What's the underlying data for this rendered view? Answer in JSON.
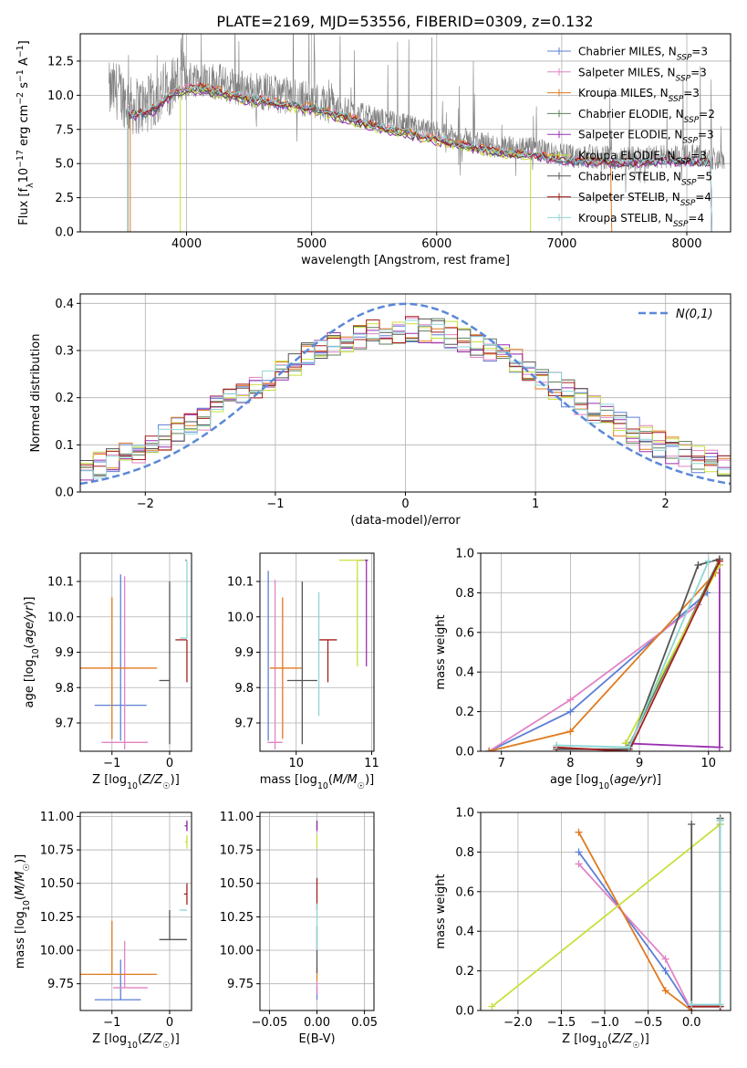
{
  "title": "PLATE=2169, MJD=53556, FIBERID=0309, z=0.132",
  "colors": {
    "Chabrier MILES": "#5b7fd6",
    "Salpeter MILES": "#e283c4",
    "Kroupa MILES": "#e07a1f",
    "Chabrier ELODIE": "#5e7f5a",
    "Salpeter ELODIE": "#9a2fb0",
    "Kroupa ELODIE": "#c8e03a",
    "Chabrier STELIB": "#555555",
    "Salpeter STELIB": "#a51e1e",
    "Kroupa STELIB": "#8fd6d6",
    "gauss": "#5b88d8",
    "data": "#808080"
  },
  "chart_data": [
    {
      "type": "line",
      "xlabel": "wavelength [Angstrom, rest frame]",
      "ylabel": "Flux [f_λ 10^-17 erg cm^-2 s^-1 A^-1]",
      "xlim": [
        3150,
        8350
      ],
      "ylim": [
        0,
        14.5
      ],
      "xticks": [
        4000,
        5000,
        6000,
        7000,
        8000
      ],
      "yticks": [
        0.0,
        2.5,
        5.0,
        7.5,
        10.0,
        12.5
      ],
      "legend_position": "upper right",
      "legend": [
        {
          "label": "Chabrier MILES",
          "nssp": "3"
        },
        {
          "label": "Salpeter MILES",
          "nssp": "3"
        },
        {
          "label": "Kroupa MILES",
          "nssp": "3"
        },
        {
          "label": "Chabrier ELODIE",
          "nssp": "2"
        },
        {
          "label": "Salpeter ELODIE",
          "nssp": "3"
        },
        {
          "label": "Kroupa ELODIE",
          "nssp": "3"
        },
        {
          "label": "Chabrier STELIB",
          "nssp": "5"
        },
        {
          "label": "Salpeter STELIB",
          "nssp": "4"
        },
        {
          "label": "Kroupa STELIB",
          "nssp": "4"
        }
      ],
      "data_trend": {
        "x": [
          3380,
          3450,
          3550,
          3700,
          3900,
          4100,
          4500,
          5000,
          5500,
          6000,
          6500,
          6800,
          7000,
          7500,
          8000,
          8300
        ],
        "y": [
          10.2,
          10.4,
          9.2,
          9.3,
          11.0,
          11.3,
          10.4,
          9.7,
          8.3,
          7.2,
          6.2,
          6.0,
          5.6,
          5.4,
          5.6,
          5.3
        ]
      },
      "model_cutoffs": [
        {
          "name": "Kroupa MILES",
          "from": 3550,
          "to": 7400
        },
        {
          "name": "Kroupa ELODIE",
          "from": 3950,
          "to": 6750
        }
      ]
    },
    {
      "type": "step",
      "xlabel": "(data-model)/error",
      "ylabel": "Normed distribution",
      "xlim": [
        -2.5,
        2.5
      ],
      "ylim": [
        0,
        0.42
      ],
      "xticks": [
        -2,
        -1,
        0,
        1,
        2
      ],
      "yticks": [
        0.0,
        0.1,
        0.2,
        0.3,
        0.4
      ],
      "legend_label": "N(0,1)",
      "bin_width": 0.1
    },
    {
      "type": "scatter",
      "xlabel": "Z [log10(Z/Z☉)]",
      "ylabel": "age  [log10(age/yr)]",
      "xlim": [
        -1.55,
        0.38
      ],
      "ylim": [
        9.62,
        10.18
      ],
      "xticks": [
        -1,
        0
      ],
      "yticks": [
        9.7,
        9.8,
        9.9,
        10.0,
        10.1
      ],
      "points": [
        {
          "name": "Chabrier MILES",
          "x": -0.85,
          "y": 9.75,
          "xerr": [
            0.45,
            0.45
          ],
          "yerr": [
            0.1,
            0.37
          ]
        },
        {
          "name": "Salpeter MILES",
          "x": -0.78,
          "y": 9.645,
          "xerr": [
            0.4,
            0.4
          ],
          "yerr": [
            0.02,
            0.47
          ]
        },
        {
          "name": "Kroupa MILES",
          "x": -1.0,
          "y": 9.855,
          "xerr": [
            0.55,
            0.78
          ],
          "yerr": [
            0.2,
            0.2
          ]
        },
        {
          "name": "Chabrier ELODIE",
          "x": 0.3,
          "y": 10.16,
          "xerr": [
            0.02,
            0.0
          ],
          "yerr": [
            0.0,
            0.0
          ]
        },
        {
          "name": "Salpeter ELODIE",
          "x": 0.3,
          "y": 10.16,
          "xerr": [
            0.03,
            0.0
          ],
          "yerr": [
            0.0,
            0.0
          ]
        },
        {
          "name": "Kroupa ELODIE",
          "x": 0.3,
          "y": 10.16,
          "xerr": [
            0.02,
            0.0
          ],
          "yerr": [
            0.0,
            0.0
          ]
        },
        {
          "name": "Chabrier STELIB",
          "x": 0.0,
          "y": 9.82,
          "xerr": [
            0.18,
            0.0
          ],
          "yerr": [
            0.18,
            0.28
          ]
        },
        {
          "name": "Salpeter STELIB",
          "x": 0.3,
          "y": 9.935,
          "xerr": [
            0.2,
            0.0
          ],
          "yerr": [
            0.12,
            0.0
          ]
        },
        {
          "name": "Kroupa STELIB",
          "x": 0.3,
          "y": 9.94,
          "xerr": [
            0.12,
            0.0
          ],
          "yerr": [
            0.0,
            0.22
          ]
        }
      ]
    },
    {
      "type": "scatter",
      "xlabel": "mass [log10(M/M☉)]",
      "ylabel": "",
      "xlim": [
        9.52,
        11.03
      ],
      "ylim": [
        9.62,
        10.18
      ],
      "xticks": [
        10,
        11
      ],
      "yticks": [
        9.7,
        9.8,
        9.9,
        10.0,
        10.1
      ],
      "points": [
        {
          "name": "Chabrier MILES",
          "x": 9.63,
          "y": 9.75,
          "xerr": [
            0.0,
            0.0
          ],
          "yerr": [
            0.1,
            0.38
          ]
        },
        {
          "name": "Salpeter MILES",
          "x": 9.72,
          "y": 9.645,
          "xerr": [
            0.1,
            0.1
          ],
          "yerr": [
            0.02,
            0.46
          ]
        },
        {
          "name": "Kroupa MILES",
          "x": 9.82,
          "y": 9.855,
          "xerr": [
            0.17,
            0.25
          ],
          "yerr": [
            0.2,
            0.2
          ]
        },
        {
          "name": "Chabrier ELODIE",
          "x": 10.93,
          "y": 10.16,
          "xerr": [
            0.1,
            0.02
          ],
          "yerr": [
            0.0,
            0.0
          ]
        },
        {
          "name": "Salpeter ELODIE",
          "x": 10.93,
          "y": 10.16,
          "xerr": [
            0.02,
            0.02
          ],
          "yerr": [
            0.3,
            0.0
          ]
        },
        {
          "name": "Kroupa ELODIE",
          "x": 10.81,
          "y": 10.16,
          "xerr": [
            0.24,
            0.1
          ],
          "yerr": [
            0.3,
            0.0
          ]
        },
        {
          "name": "Chabrier STELIB",
          "x": 10.08,
          "y": 9.82,
          "xerr": [
            0.2,
            0.2
          ],
          "yerr": [
            0.18,
            0.28
          ]
        },
        {
          "name": "Salpeter STELIB",
          "x": 10.42,
          "y": 9.935,
          "xerr": [
            0.12,
            0.12
          ],
          "yerr": [
            0.12,
            0.0
          ]
        },
        {
          "name": "Kroupa STELIB",
          "x": 10.3,
          "y": 9.94,
          "xerr": [
            0.0,
            0.0
          ],
          "yerr": [
            0.22,
            0.13
          ]
        }
      ]
    },
    {
      "type": "line",
      "xlabel": "age  [log10(age/yr)]",
      "ylabel": "mass weight",
      "xlim": [
        6.7,
        10.32
      ],
      "ylim": [
        0,
        1.0
      ],
      "xticks": [
        7,
        8,
        9,
        10
      ],
      "yticks": [
        0.0,
        0.2,
        0.4,
        0.6,
        0.8,
        1.0
      ],
      "series": [
        {
          "name": "Chabrier MILES",
          "x": [
            6.82,
            8.0,
            9.98
          ],
          "y": [
            0.0,
            0.2,
            0.8
          ]
        },
        {
          "name": "Salpeter MILES",
          "x": [
            6.82,
            8.0,
            9.85
          ],
          "y": [
            0.0,
            0.26,
            0.74
          ]
        },
        {
          "name": "Kroupa MILES",
          "x": [
            6.82,
            8.0,
            10.1
          ],
          "y": [
            0.0,
            0.1,
            0.9
          ]
        },
        {
          "name": "Chabrier ELODIE",
          "x": [
            8.85,
            10.16
          ],
          "y": [
            0.03,
            0.97
          ]
        },
        {
          "name": "Salpeter ELODIE",
          "x": [
            8.8,
            10.16,
            10.16
          ],
          "y": [
            0.04,
            0.02,
            0.94
          ]
        },
        {
          "name": "Kroupa ELODIE",
          "x": [
            8.8,
            10.16
          ],
          "y": [
            0.04,
            0.94
          ]
        },
        {
          "name": "Chabrier STELIB",
          "x": [
            7.8,
            8.85,
            9.85,
            10.16
          ],
          "y": [
            0.01,
            0.01,
            0.94,
            0.97
          ]
        },
        {
          "name": "Salpeter STELIB",
          "x": [
            7.8,
            8.85,
            10.16
          ],
          "y": [
            0.02,
            0.0,
            0.96
          ]
        },
        {
          "name": "Kroupa STELIB",
          "x": [
            7.8,
            8.85,
            10.0
          ],
          "y": [
            0.03,
            0.02,
            0.96
          ]
        }
      ]
    },
    {
      "type": "scatter",
      "xlabel": "Z [log10(Z/Z☉)]",
      "ylabel": "mass [log10(M/M☉)]",
      "xlim": [
        -1.55,
        0.38
      ],
      "ylim": [
        9.55,
        11.03
      ],
      "xticks": [
        -1,
        0
      ],
      "yticks": [
        9.75,
        10.0,
        10.25,
        10.5,
        10.75,
        11.0
      ],
      "points": [
        {
          "name": "Chabrier MILES",
          "x": -0.85,
          "y": 9.63,
          "xerr": [
            0.45,
            0.35
          ],
          "yerr": [
            0.0,
            0.3
          ]
        },
        {
          "name": "Salpeter MILES",
          "x": -0.78,
          "y": 9.72,
          "xerr": [
            0.2,
            0.4
          ],
          "yerr": [
            0.0,
            0.35
          ]
        },
        {
          "name": "Kroupa MILES",
          "x": -1.0,
          "y": 9.82,
          "xerr": [
            0.55,
            0.78
          ],
          "yerr": [
            0.0,
            0.4
          ]
        },
        {
          "name": "Chabrier ELODIE",
          "x": 0.3,
          "y": 10.93,
          "xerr": [
            0.04,
            0.0
          ],
          "yerr": [
            0.03,
            0.03
          ]
        },
        {
          "name": "Salpeter ELODIE",
          "x": 0.3,
          "y": 10.93,
          "xerr": [
            0.03,
            0.0
          ],
          "yerr": [
            0.04,
            0.04
          ]
        },
        {
          "name": "Kroupa ELODIE",
          "x": 0.3,
          "y": 10.81,
          "xerr": [
            0.03,
            0.0
          ],
          "yerr": [
            0.05,
            0.05
          ]
        },
        {
          "name": "Chabrier STELIB",
          "x": 0.0,
          "y": 10.08,
          "xerr": [
            0.18,
            0.3
          ],
          "yerr": [
            0.0,
            0.22
          ]
        },
        {
          "name": "Salpeter STELIB",
          "x": 0.3,
          "y": 10.42,
          "xerr": [
            0.05,
            0.0
          ],
          "yerr": [
            0.08,
            0.08
          ]
        },
        {
          "name": "Kroupa STELIB",
          "x": 0.3,
          "y": 10.3,
          "xerr": [
            0.13,
            0.0
          ],
          "yerr": [
            0.0,
            0.0
          ]
        }
      ]
    },
    {
      "type": "scatter",
      "xlabel": "E(B-V)",
      "ylabel": "",
      "xlim": [
        -0.06,
        0.06
      ],
      "ylim": [
        9.55,
        11.03
      ],
      "xticks": [
        -0.05,
        0.0,
        0.05
      ],
      "yticks": [
        9.75,
        10.0,
        10.25,
        10.5,
        10.75,
        11.0
      ],
      "points": [
        {
          "name": "Chabrier MILES",
          "x": 0.0,
          "y": 9.63,
          "xerr": [
            0,
            0
          ],
          "yerr": [
            0.0,
            0.1
          ]
        },
        {
          "name": "Salpeter MILES",
          "x": 0.0,
          "y": 9.72,
          "xerr": [
            0,
            0
          ],
          "yerr": [
            0.05,
            0.05
          ]
        },
        {
          "name": "Kroupa MILES",
          "x": 0.0,
          "y": 9.82,
          "xerr": [
            0,
            0
          ],
          "yerr": [
            0.05,
            0.05
          ]
        },
        {
          "name": "Chabrier ELODIE",
          "x": 0.0,
          "y": 10.93,
          "xerr": [
            0,
            0
          ],
          "yerr": [
            0.03,
            0.03
          ]
        },
        {
          "name": "Salpeter ELODIE",
          "x": 0.0,
          "y": 10.93,
          "xerr": [
            0,
            0
          ],
          "yerr": [
            0.04,
            0.04
          ]
        },
        {
          "name": "Kroupa ELODIE",
          "x": 0.0,
          "y": 10.81,
          "xerr": [
            0,
            0
          ],
          "yerr": [
            0.05,
            0.05
          ]
        },
        {
          "name": "Chabrier STELIB",
          "x": 0.0,
          "y": 10.08,
          "xerr": [
            0,
            0
          ],
          "yerr": [
            0.25,
            0.1
          ]
        },
        {
          "name": "Salpeter STELIB",
          "x": 0.0,
          "y": 10.42,
          "xerr": [
            0,
            0
          ],
          "yerr": [
            0.12,
            0.12
          ]
        },
        {
          "name": "Kroupa STELIB",
          "x": 0.0,
          "y": 10.3,
          "xerr": [
            0,
            0
          ],
          "yerr": [
            0.3,
            0.05
          ]
        }
      ]
    },
    {
      "type": "line",
      "xlabel": "Z [log10(Z/Z☉)]",
      "ylabel": "mass weight",
      "xlim": [
        -2.43,
        0.45
      ],
      "ylim": [
        0,
        1.0
      ],
      "xticks": [
        -2.0,
        -1.5,
        -1.0,
        -0.5,
        0.0
      ],
      "yticks": [
        0.0,
        0.2,
        0.4,
        0.6,
        0.8,
        1.0
      ],
      "series": [
        {
          "name": "Chabrier MILES",
          "x": [
            -1.3,
            -0.3,
            0.0
          ],
          "y": [
            0.8,
            0.2,
            0.0
          ]
        },
        {
          "name": "Salpeter MILES",
          "x": [
            -1.3,
            -0.3,
            0.0
          ],
          "y": [
            0.74,
            0.26,
            0.0
          ]
        },
        {
          "name": "Kroupa MILES",
          "x": [
            -1.3,
            -0.3,
            0.0
          ],
          "y": [
            0.9,
            0.1,
            0.0
          ]
        },
        {
          "name": "Chabrier ELODIE",
          "x": [
            0.33,
            0.33
          ],
          "y": [
            0.03,
            0.97
          ]
        },
        {
          "name": "Salpeter ELODIE",
          "x": [
            0.33,
            0.33
          ],
          "y": [
            0.02,
            0.94
          ]
        },
        {
          "name": "Kroupa ELODIE",
          "x": [
            -2.3,
            0.33
          ],
          "y": [
            0.02,
            0.94
          ]
        },
        {
          "name": "Chabrier STELIB",
          "x": [
            0.0,
            0.0,
            0.33,
            0.33
          ],
          "y": [
            0.94,
            0.02,
            0.02,
            0.97
          ]
        },
        {
          "name": "Salpeter STELIB",
          "x": [
            0.0,
            0.33,
            0.33
          ],
          "y": [
            0.02,
            0.02,
            0.96
          ]
        },
        {
          "name": "Kroupa STELIB",
          "x": [
            0.0,
            0.33,
            0.33
          ],
          "y": [
            0.03,
            0.03,
            0.96
          ]
        }
      ]
    }
  ]
}
